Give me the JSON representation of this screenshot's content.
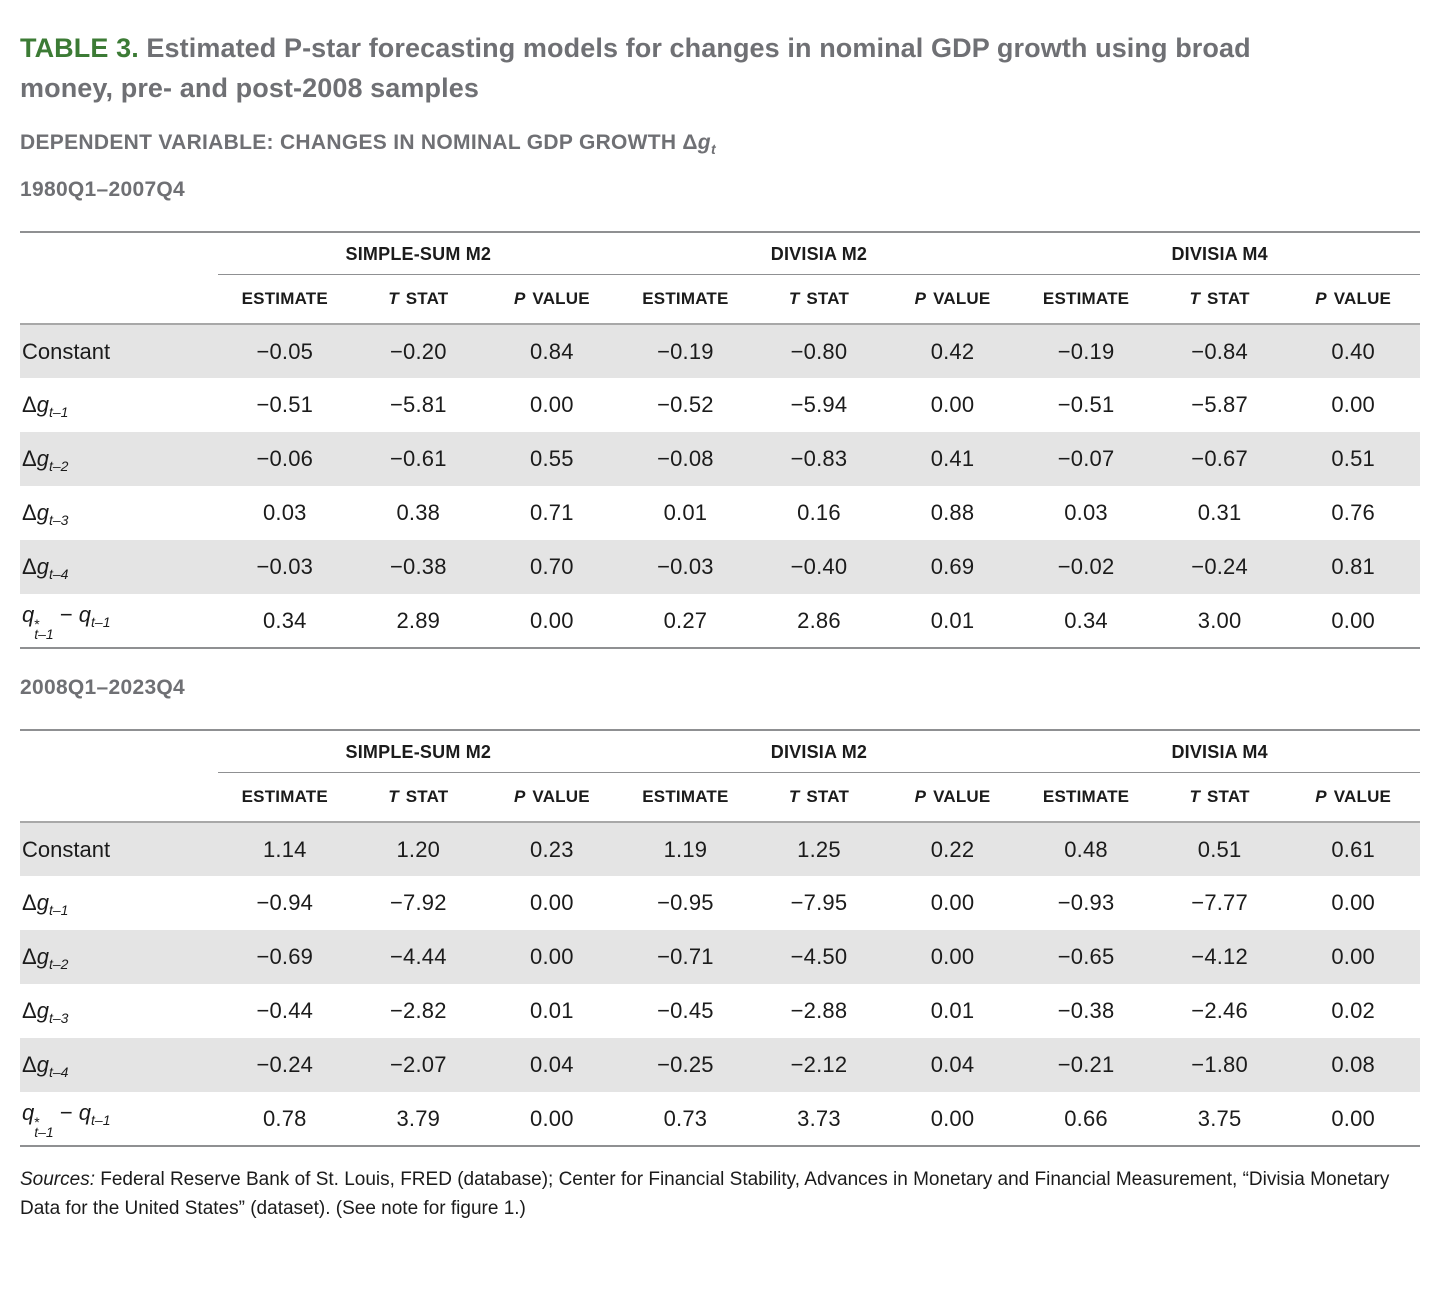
{
  "header": {
    "table_label": "TABLE 3.",
    "title_text": "Estimated P-star forecasting models for changes in nominal GDP growth using broad money, pre- and post-2008 samples",
    "dependent_variable_prefix": "DEPENDENT VARIABLE: CHANGES IN NOMINAL GDP GROWTH",
    "dv_symbol_delta": "Δ",
    "dv_symbol_var": "g",
    "dv_symbol_sub": "t"
  },
  "colors": {
    "accent_green": "#3c7b35",
    "heading_gray": "#6f7074",
    "row_stripe": "#e4e4e4",
    "rule_gray": "#8f9092"
  },
  "table_template": {
    "group_headers": [
      "SIMPLE-SUM M2",
      "DIVISIA M2",
      "DIVISIA M4"
    ],
    "sub_headers": [
      {
        "em": "",
        "text": "ESTIMATE"
      },
      {
        "em": "T",
        "text": " STAT"
      },
      {
        "em": "P",
        "text": " VALUE"
      }
    ]
  },
  "tables": [
    {
      "period": "1980Q1–2007Q4",
      "rows": [
        {
          "label": [
            {
              "t": "text",
              "v": "Constant"
            }
          ],
          "values": [
            "−0.05",
            "−0.20",
            "0.84",
            "−0.19",
            "−0.80",
            "0.42",
            "−0.19",
            "−0.84",
            "0.40"
          ]
        },
        {
          "label": [
            {
              "t": "text",
              "v": "Δ"
            },
            {
              "t": "i",
              "v": "g"
            },
            {
              "t": "sub",
              "v": "t–1"
            }
          ],
          "values": [
            "−0.51",
            "−5.81",
            "0.00",
            "−0.52",
            "−5.94",
            "0.00",
            "−0.51",
            "−5.87",
            "0.00"
          ]
        },
        {
          "label": [
            {
              "t": "text",
              "v": "Δ"
            },
            {
              "t": "i",
              "v": "g"
            },
            {
              "t": "sub",
              "v": "t–2"
            }
          ],
          "values": [
            "−0.06",
            "−0.61",
            "0.55",
            "−0.08",
            "−0.83",
            "0.41",
            "−0.07",
            "−0.67",
            "0.51"
          ]
        },
        {
          "label": [
            {
              "t": "text",
              "v": "Δ"
            },
            {
              "t": "i",
              "v": "g"
            },
            {
              "t": "sub",
              "v": "t–3"
            }
          ],
          "values": [
            "0.03",
            "0.38",
            "0.71",
            "0.01",
            "0.16",
            "0.88",
            "0.03",
            "0.31",
            "0.76"
          ]
        },
        {
          "label": [
            {
              "t": "text",
              "v": "Δ"
            },
            {
              "t": "i",
              "v": "g"
            },
            {
              "t": "sub",
              "v": "t–4"
            }
          ],
          "values": [
            "−0.03",
            "−0.38",
            "0.70",
            "−0.03",
            "−0.40",
            "0.69",
            "−0.02",
            "−0.24",
            "0.81"
          ]
        },
        {
          "label": [
            {
              "t": "i",
              "v": "q"
            },
            {
              "t": "supsub",
              "sup": "*",
              "sub": "t–1"
            },
            {
              "t": "text",
              "v": " − "
            },
            {
              "t": "i",
              "v": "q"
            },
            {
              "t": "sub",
              "v": "t–1"
            }
          ],
          "values": [
            "0.34",
            "2.89",
            "0.00",
            "0.27",
            "2.86",
            "0.01",
            "0.34",
            "3.00",
            "0.00"
          ]
        }
      ]
    },
    {
      "period": "2008Q1–2023Q4",
      "rows": [
        {
          "label": [
            {
              "t": "text",
              "v": "Constant"
            }
          ],
          "values": [
            "1.14",
            "1.20",
            "0.23",
            "1.19",
            "1.25",
            "0.22",
            "0.48",
            "0.51",
            "0.61"
          ]
        },
        {
          "label": [
            {
              "t": "text",
              "v": "Δ"
            },
            {
              "t": "i",
              "v": "g"
            },
            {
              "t": "sub",
              "v": "t–1"
            }
          ],
          "values": [
            "−0.94",
            "−7.92",
            "0.00",
            "−0.95",
            "−7.95",
            "0.00",
            "−0.93",
            "−7.77",
            "0.00"
          ]
        },
        {
          "label": [
            {
              "t": "text",
              "v": "Δ"
            },
            {
              "t": "i",
              "v": "g"
            },
            {
              "t": "sub",
              "v": "t–2"
            }
          ],
          "values": [
            "−0.69",
            "−4.44",
            "0.00",
            "−0.71",
            "−4.50",
            "0.00",
            "−0.65",
            "−4.12",
            "0.00"
          ]
        },
        {
          "label": [
            {
              "t": "text",
              "v": "Δ"
            },
            {
              "t": "i",
              "v": "g"
            },
            {
              "t": "sub",
              "v": "t–3"
            }
          ],
          "values": [
            "−0.44",
            "−2.82",
            "0.01",
            "−0.45",
            "−2.88",
            "0.01",
            "−0.38",
            "−2.46",
            "0.02"
          ]
        },
        {
          "label": [
            {
              "t": "text",
              "v": "Δ"
            },
            {
              "t": "i",
              "v": "g"
            },
            {
              "t": "sub",
              "v": "t–4"
            }
          ],
          "values": [
            "−0.24",
            "−2.07",
            "0.04",
            "−0.25",
            "−2.12",
            "0.04",
            "−0.21",
            "−1.80",
            "0.08"
          ]
        },
        {
          "label": [
            {
              "t": "i",
              "v": "q"
            },
            {
              "t": "supsub",
              "sup": "*",
              "sub": "t–1"
            },
            {
              "t": "text",
              "v": " − "
            },
            {
              "t": "i",
              "v": "q"
            },
            {
              "t": "sub",
              "v": "t–1"
            }
          ],
          "values": [
            "0.78",
            "3.79",
            "0.00",
            "0.73",
            "3.73",
            "0.00",
            "0.66",
            "3.75",
            "0.00"
          ]
        }
      ]
    }
  ],
  "footer": {
    "sources_label": "Sources:",
    "sources_text": " Federal Reserve Bank of St. Louis, FRED (database); Center for Financial Stability, Advances in Monetary and Financial Measurement, “Divisia Monetary Data for the United States” (dataset). (See note for figure 1.)"
  }
}
